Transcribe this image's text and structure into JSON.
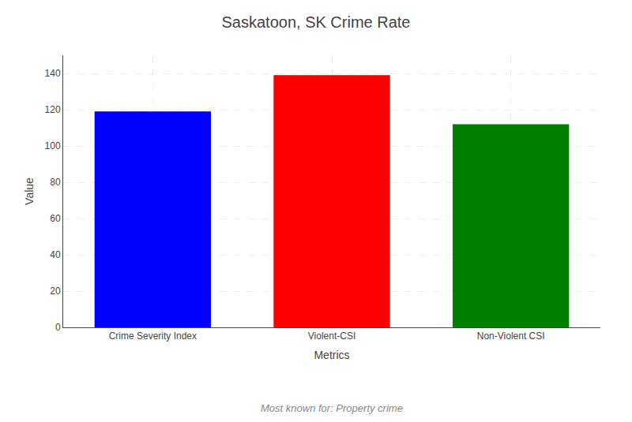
{
  "chart_data": {
    "type": "bar",
    "title": "Saskatoon, SK Crime Rate",
    "subtitle": "Most known for: Property crime",
    "xlabel": "Metrics",
    "ylabel": "Value",
    "categories": [
      "Crime Severity Index",
      "Violent-CSI",
      "Non-Violent CSI"
    ],
    "values": [
      119,
      139,
      112
    ],
    "colors": [
      "#0000ff",
      "#ff0000",
      "#008000"
    ],
    "ylim": [
      0,
      150
    ],
    "yticks": [
      0,
      20,
      40,
      60,
      80,
      100,
      120,
      140
    ],
    "grid": true
  }
}
